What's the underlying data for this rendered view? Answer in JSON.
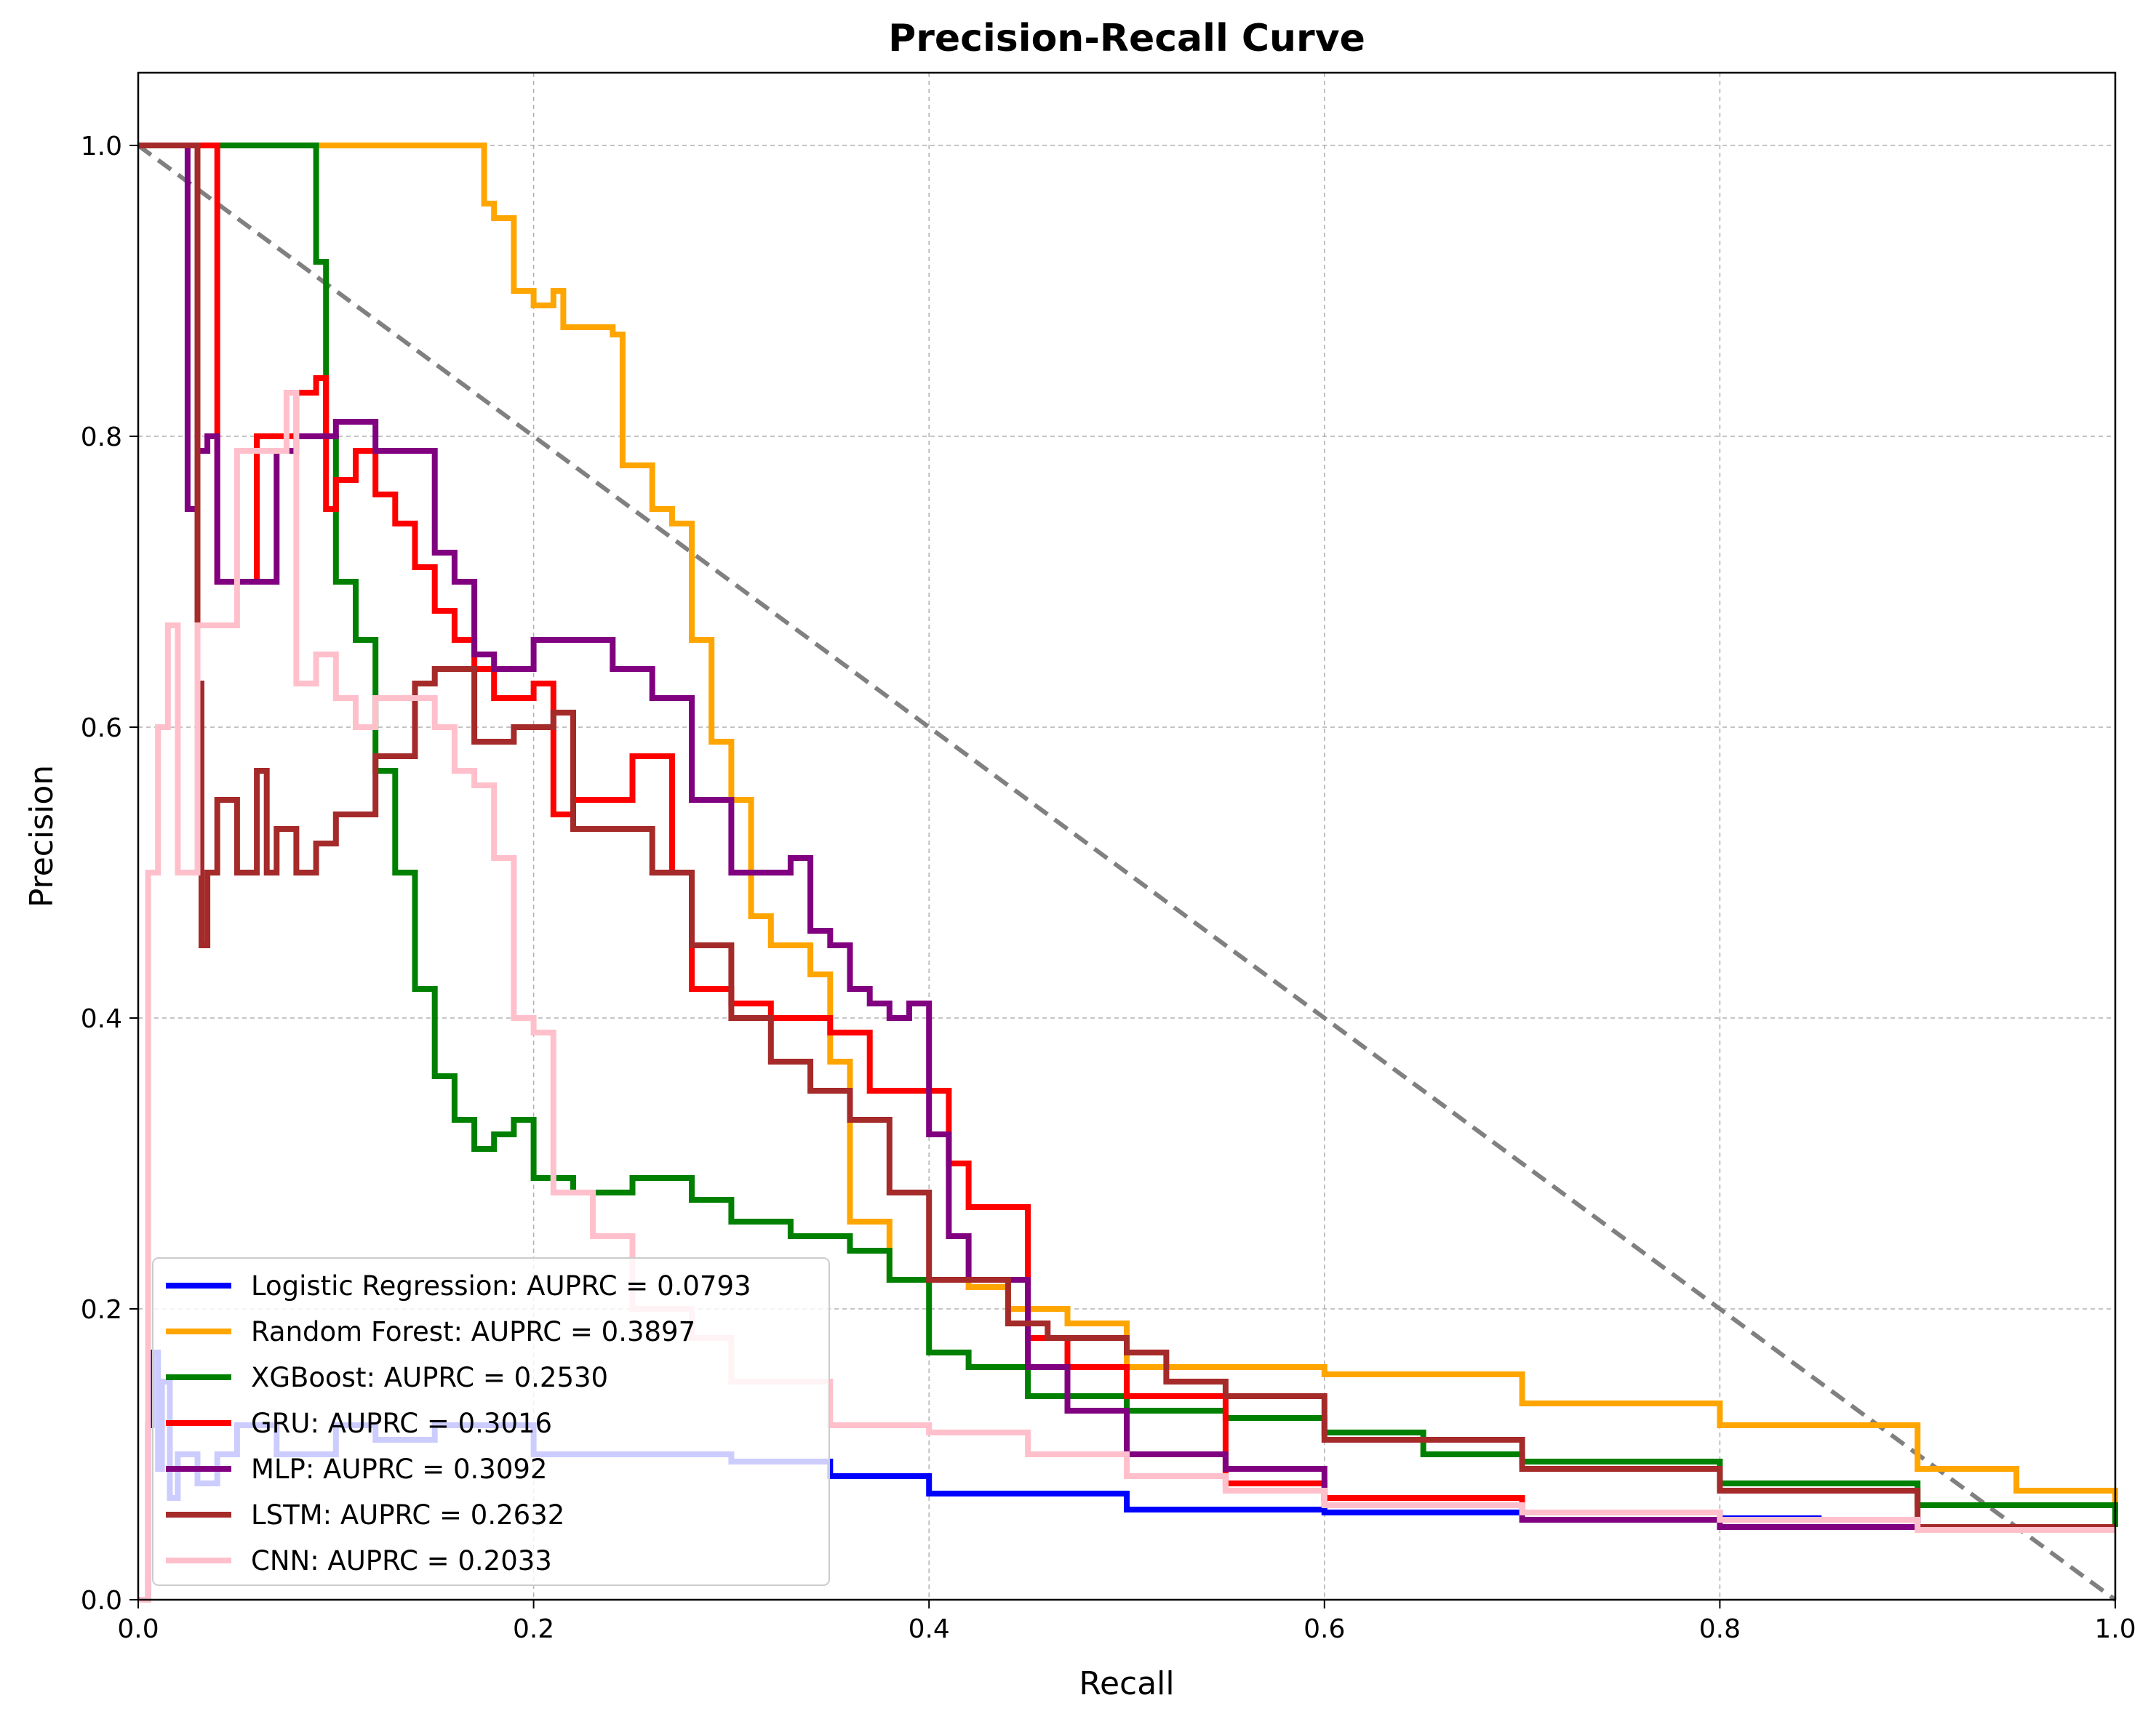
{
  "chart_data": {
    "type": "line",
    "title": "Precision-Recall Curve",
    "xlabel": "Recall",
    "ylabel": "Precision",
    "xlim": [
      0.0,
      1.0
    ],
    "ylim": [
      0.0,
      1.05
    ],
    "xticks": [
      "0.0",
      "0.2",
      "0.4",
      "0.6",
      "0.8",
      "1.0"
    ],
    "yticks": [
      "0.0",
      "0.2",
      "0.4",
      "0.6",
      "0.8",
      "1.0"
    ],
    "xtick_values": [
      0.0,
      0.2,
      0.4,
      0.6,
      0.8,
      1.0
    ],
    "ytick_values": [
      0.0,
      0.2,
      0.4,
      0.6,
      0.8,
      1.0
    ],
    "grid": true,
    "legend_position": "lower-left",
    "reference_line": {
      "x": [
        0.0,
        1.0
      ],
      "y": [
        1.0,
        0.0
      ],
      "color": "#808080",
      "style": "dashed"
    },
    "series": [
      {
        "name": "Logistic Regression: AUPRC = 0.0793",
        "color": "#0000ff",
        "x": [
          0.0,
          0.005,
          0.007,
          0.01,
          0.012,
          0.016,
          0.02,
          0.03,
          0.04,
          0.05,
          0.07,
          0.1,
          0.12,
          0.15,
          0.2,
          0.25,
          0.3,
          0.35,
          0.4,
          0.45,
          0.5,
          0.55,
          0.6,
          0.65,
          0.7,
          0.75,
          0.8,
          0.85,
          0.9,
          0.95,
          1.0
        ],
        "y": [
          0.0,
          0.12,
          0.17,
          0.09,
          0.15,
          0.07,
          0.1,
          0.08,
          0.1,
          0.12,
          0.1,
          0.12,
          0.11,
          0.12,
          0.1,
          0.1,
          0.095,
          0.085,
          0.073,
          0.073,
          0.062,
          0.062,
          0.06,
          0.06,
          0.06,
          0.06,
          0.056,
          0.055,
          0.05,
          0.05,
          0.05
        ]
      },
      {
        "name": "Random Forest: AUPRC = 0.3897",
        "color": "#ffa500",
        "x": [
          0.0,
          0.17,
          0.175,
          0.18,
          0.19,
          0.2,
          0.21,
          0.215,
          0.24,
          0.245,
          0.26,
          0.27,
          0.28,
          0.29,
          0.3,
          0.31,
          0.32,
          0.34,
          0.35,
          0.36,
          0.38,
          0.4,
          0.42,
          0.44,
          0.47,
          0.5,
          0.52,
          0.6,
          0.64,
          0.66,
          0.7,
          0.8,
          0.9,
          0.95,
          1.0
        ],
        "y": [
          1.0,
          1.0,
          0.96,
          0.95,
          0.9,
          0.89,
          0.9,
          0.875,
          0.87,
          0.78,
          0.75,
          0.74,
          0.66,
          0.59,
          0.55,
          0.47,
          0.45,
          0.43,
          0.37,
          0.26,
          0.22,
          0.22,
          0.215,
          0.2,
          0.19,
          0.16,
          0.16,
          0.155,
          0.155,
          0.155,
          0.135,
          0.12,
          0.09,
          0.075,
          0.05
        ]
      },
      {
        "name": "XGBoost: AUPRC = 0.2530",
        "color": "#008000",
        "x": [
          0.0,
          0.085,
          0.09,
          0.095,
          0.1,
          0.11,
          0.12,
          0.13,
          0.14,
          0.15,
          0.16,
          0.17,
          0.18,
          0.19,
          0.2,
          0.22,
          0.25,
          0.28,
          0.3,
          0.33,
          0.36,
          0.38,
          0.4,
          0.42,
          0.45,
          0.5,
          0.55,
          0.6,
          0.65,
          0.7,
          0.8,
          0.9,
          1.0
        ],
        "y": [
          1.0,
          1.0,
          0.92,
          0.8,
          0.7,
          0.66,
          0.57,
          0.5,
          0.42,
          0.36,
          0.33,
          0.31,
          0.32,
          0.33,
          0.29,
          0.28,
          0.29,
          0.275,
          0.26,
          0.25,
          0.24,
          0.22,
          0.17,
          0.16,
          0.14,
          0.13,
          0.125,
          0.115,
          0.1,
          0.095,
          0.08,
          0.065,
          0.05
        ]
      },
      {
        "name": "GRU: AUPRC = 0.3016",
        "color": "#ff0000",
        "x": [
          0.0,
          0.035,
          0.04,
          0.06,
          0.08,
          0.09,
          0.095,
          0.1,
          0.11,
          0.12,
          0.13,
          0.14,
          0.15,
          0.16,
          0.17,
          0.18,
          0.2,
          0.21,
          0.22,
          0.25,
          0.27,
          0.28,
          0.3,
          0.32,
          0.35,
          0.37,
          0.38,
          0.4,
          0.41,
          0.42,
          0.45,
          0.47,
          0.5,
          0.55,
          0.6,
          0.7
        ],
        "y": [
          1.0,
          1.0,
          0.7,
          0.8,
          0.83,
          0.84,
          0.75,
          0.77,
          0.79,
          0.76,
          0.74,
          0.71,
          0.68,
          0.66,
          0.64,
          0.62,
          0.63,
          0.54,
          0.55,
          0.58,
          0.5,
          0.42,
          0.41,
          0.4,
          0.39,
          0.35,
          0.35,
          0.35,
          0.3,
          0.27,
          0.18,
          0.16,
          0.14,
          0.08,
          0.07,
          0.06
        ]
      },
      {
        "name": "MLP: AUPRC = 0.3092",
        "color": "#800080",
        "x": [
          0.0,
          0.02,
          0.025,
          0.03,
          0.035,
          0.04,
          0.07,
          0.08,
          0.1,
          0.12,
          0.14,
          0.15,
          0.16,
          0.17,
          0.18,
          0.2,
          0.22,
          0.24,
          0.26,
          0.28,
          0.3,
          0.33,
          0.34,
          0.35,
          0.36,
          0.37,
          0.38,
          0.39,
          0.4,
          0.41,
          0.42,
          0.45,
          0.47,
          0.5,
          0.55,
          0.6,
          0.7,
          0.8,
          0.9,
          1.0
        ],
        "y": [
          1.0,
          1.0,
          0.75,
          0.79,
          0.8,
          0.7,
          0.79,
          0.8,
          0.81,
          0.79,
          0.79,
          0.72,
          0.7,
          0.65,
          0.64,
          0.66,
          0.66,
          0.64,
          0.62,
          0.55,
          0.5,
          0.51,
          0.46,
          0.45,
          0.42,
          0.41,
          0.4,
          0.41,
          0.32,
          0.25,
          0.22,
          0.16,
          0.13,
          0.1,
          0.09,
          0.065,
          0.055,
          0.05,
          0.05,
          0.05
        ]
      },
      {
        "name": "LSTM: AUPRC = 0.2632",
        "color": "#a52a2a",
        "x": [
          0.0,
          0.03,
          0.032,
          0.035,
          0.04,
          0.05,
          0.06,
          0.065,
          0.07,
          0.08,
          0.09,
          0.1,
          0.12,
          0.14,
          0.15,
          0.17,
          0.19,
          0.21,
          0.22,
          0.24,
          0.26,
          0.28,
          0.3,
          0.32,
          0.34,
          0.36,
          0.38,
          0.4,
          0.42,
          0.44,
          0.46,
          0.48,
          0.5,
          0.52,
          0.55,
          0.6,
          0.7,
          0.8,
          0.9,
          1.0
        ],
        "y": [
          1.0,
          0.63,
          0.45,
          0.5,
          0.55,
          0.5,
          0.57,
          0.5,
          0.53,
          0.5,
          0.52,
          0.54,
          0.58,
          0.63,
          0.64,
          0.59,
          0.6,
          0.61,
          0.53,
          0.53,
          0.5,
          0.45,
          0.4,
          0.37,
          0.35,
          0.33,
          0.28,
          0.22,
          0.22,
          0.19,
          0.18,
          0.18,
          0.17,
          0.15,
          0.14,
          0.11,
          0.09,
          0.075,
          0.05,
          0.05
        ]
      },
      {
        "name": "CNN: AUPRC = 0.2033",
        "color": "#ffc0cb",
        "x": [
          0.0,
          0.005,
          0.01,
          0.015,
          0.02,
          0.03,
          0.05,
          0.075,
          0.08,
          0.09,
          0.1,
          0.11,
          0.12,
          0.14,
          0.15,
          0.16,
          0.17,
          0.18,
          0.19,
          0.2,
          0.21,
          0.22,
          0.23,
          0.25,
          0.28,
          0.3,
          0.35,
          0.4,
          0.45,
          0.5,
          0.55,
          0.6,
          0.7,
          0.8,
          0.9,
          1.0
        ],
        "y": [
          0.0,
          0.5,
          0.6,
          0.67,
          0.5,
          0.67,
          0.79,
          0.83,
          0.63,
          0.65,
          0.62,
          0.6,
          0.62,
          0.62,
          0.6,
          0.57,
          0.56,
          0.51,
          0.4,
          0.39,
          0.28,
          0.28,
          0.25,
          0.2,
          0.18,
          0.15,
          0.12,
          0.115,
          0.1,
          0.085,
          0.075,
          0.065,
          0.06,
          0.055,
          0.048,
          0.048
        ]
      }
    ]
  }
}
